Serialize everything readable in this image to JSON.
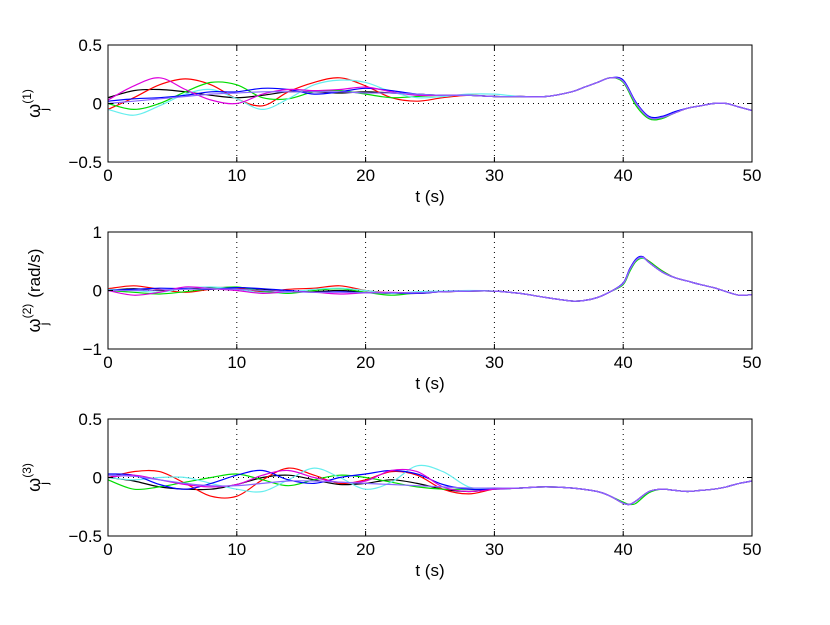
{
  "colors": {
    "black": "#000000",
    "red": "#ff0000",
    "green": "#00dd00",
    "cyan": "#66eeee",
    "blue": "#0000ff",
    "magenta": "#dd00dd",
    "purple": "#8866ff"
  },
  "chart_data": [
    {
      "type": "line",
      "xlabel": "t (s)",
      "ylabel": {
        "symbol": "ω",
        "sub": "j",
        "sup": "(1)",
        "unit": ""
      },
      "xlim": [
        0,
        50
      ],
      "ylim": [
        -0.5,
        0.5
      ],
      "xticks": [
        0,
        10,
        20,
        30,
        40,
        50
      ],
      "yticks": [
        -0.5,
        0,
        0.5
      ],
      "yticklabels": [
        "−0.5",
        "0",
        "0.5"
      ],
      "grid": true,
      "x": [
        0,
        2,
        4,
        6,
        8,
        10,
        12,
        14,
        16,
        18,
        20,
        22,
        24,
        26,
        28,
        30,
        32,
        34,
        36,
        37,
        38,
        39,
        40,
        41,
        42,
        43,
        44,
        45,
        46,
        47,
        48,
        49,
        50
      ],
      "series": [
        {
          "color": "black",
          "values": [
            0.05,
            0.11,
            0.12,
            0.1,
            0.07,
            0.05,
            0.07,
            0.1,
            0.1,
            0.09,
            0.1,
            0.09,
            0.08,
            0.07,
            0.07,
            0.06,
            0.06,
            0.06,
            0.1,
            0.14,
            0.18,
            0.22,
            0.19,
            0.0,
            -0.12,
            -0.12,
            -0.08,
            -0.04,
            -0.02,
            0.0,
            0.0,
            -0.03,
            -0.06
          ]
        },
        {
          "color": "red",
          "values": [
            -0.05,
            0.05,
            0.16,
            0.21,
            0.16,
            0.04,
            -0.02,
            0.1,
            0.18,
            0.22,
            0.15,
            0.05,
            0.02,
            0.05,
            0.07,
            0.06,
            0.06,
            0.06,
            0.1,
            0.14,
            0.18,
            0.22,
            0.19,
            0.0,
            -0.12,
            -0.12,
            -0.08,
            -0.04,
            -0.02,
            0.0,
            0.0,
            -0.03,
            -0.06
          ]
        },
        {
          "color": "green",
          "values": [
            0.0,
            -0.05,
            0.0,
            0.1,
            0.18,
            0.16,
            0.05,
            0.04,
            0.1,
            0.11,
            0.08,
            0.05,
            0.06,
            0.07,
            0.07,
            0.06,
            0.06,
            0.06,
            0.1,
            0.14,
            0.18,
            0.22,
            0.18,
            -0.02,
            -0.13,
            -0.13,
            -0.08,
            -0.04,
            -0.02,
            0.0,
            0.0,
            -0.03,
            -0.06
          ]
        },
        {
          "color": "cyan",
          "values": [
            -0.05,
            -0.1,
            -0.02,
            0.08,
            0.12,
            0.04,
            -0.05,
            0.04,
            0.16,
            0.2,
            0.18,
            0.1,
            0.05,
            0.06,
            0.08,
            0.08,
            0.06,
            0.06,
            0.1,
            0.14,
            0.18,
            0.22,
            0.19,
            0.0,
            -0.12,
            -0.12,
            -0.08,
            -0.04,
            -0.02,
            0.0,
            0.0,
            -0.03,
            -0.06
          ]
        },
        {
          "color": "blue",
          "values": [
            0.02,
            0.04,
            0.05,
            0.07,
            0.1,
            0.1,
            0.13,
            0.12,
            0.08,
            0.1,
            0.13,
            0.11,
            0.08,
            0.07,
            0.07,
            0.06,
            0.06,
            0.06,
            0.1,
            0.14,
            0.18,
            0.22,
            0.2,
            0.01,
            -0.11,
            -0.11,
            -0.07,
            -0.04,
            -0.02,
            0.0,
            0.0,
            -0.03,
            -0.06
          ]
        },
        {
          "color": "magenta",
          "values": [
            0.03,
            0.15,
            0.22,
            0.12,
            0.03,
            0.0,
            0.08,
            0.12,
            0.11,
            0.12,
            0.14,
            0.1,
            0.07,
            0.07,
            0.07,
            0.06,
            0.06,
            0.06,
            0.1,
            0.14,
            0.18,
            0.22,
            0.19,
            0.0,
            -0.12,
            -0.12,
            -0.08,
            -0.04,
            -0.02,
            0.0,
            0.0,
            -0.03,
            -0.06
          ]
        },
        {
          "color": "purple",
          "values": [
            0.0,
            0.02,
            0.04,
            0.06,
            0.08,
            0.09,
            0.1,
            0.1,
            0.1,
            0.1,
            0.09,
            0.09,
            0.08,
            0.07,
            0.07,
            0.06,
            0.06,
            0.06,
            0.1,
            0.14,
            0.18,
            0.22,
            0.19,
            0.0,
            -0.12,
            -0.12,
            -0.08,
            -0.04,
            -0.02,
            0.0,
            0.0,
            -0.03,
            -0.06
          ]
        }
      ]
    },
    {
      "type": "line",
      "xlabel": "t (s)",
      "ylabel": {
        "symbol": "ω",
        "sub": "j",
        "sup": "(2)",
        "unit": "(rad/s)"
      },
      "xlim": [
        0,
        50
      ],
      "ylim": [
        -1,
        1
      ],
      "xticks": [
        0,
        10,
        20,
        30,
        40,
        50
      ],
      "yticks": [
        -1,
        0,
        1
      ],
      "yticklabels": [
        "−1",
        "0",
        "1"
      ],
      "grid": true,
      "x": [
        0,
        2,
        4,
        6,
        8,
        10,
        12,
        14,
        16,
        18,
        20,
        22,
        24,
        26,
        28,
        30,
        32,
        34,
        36,
        37,
        38,
        39,
        40,
        40.5,
        41,
        41.5,
        42,
        43,
        44,
        45,
        46,
        47,
        48,
        49,
        50
      ],
      "series": [
        {
          "color": "black",
          "values": [
            0.0,
            0.03,
            0.0,
            0.03,
            0.05,
            0.05,
            0.02,
            -0.02,
            -0.02,
            0.0,
            -0.03,
            -0.05,
            -0.05,
            -0.02,
            -0.01,
            -0.01,
            -0.05,
            -0.12,
            -0.18,
            -0.17,
            -0.12,
            -0.02,
            0.12,
            0.35,
            0.52,
            0.57,
            0.48,
            0.32,
            0.22,
            0.16,
            0.1,
            0.05,
            -0.02,
            -0.08,
            -0.07
          ]
        },
        {
          "color": "red",
          "values": [
            0.03,
            0.08,
            0.02,
            -0.03,
            0.02,
            0.04,
            -0.02,
            0.02,
            0.04,
            0.08,
            0.0,
            -0.04,
            -0.03,
            -0.02,
            -0.01,
            -0.01,
            -0.05,
            -0.12,
            -0.18,
            -0.17,
            -0.12,
            -0.02,
            0.12,
            0.35,
            0.52,
            0.56,
            0.5,
            0.34,
            0.22,
            0.16,
            0.1,
            0.05,
            -0.02,
            -0.08,
            -0.07
          ]
        },
        {
          "color": "green",
          "values": [
            0.0,
            -0.03,
            -0.06,
            -0.02,
            0.03,
            0.06,
            -0.01,
            -0.05,
            0.0,
            0.03,
            -0.03,
            -0.08,
            -0.04,
            -0.02,
            -0.01,
            -0.01,
            -0.05,
            -0.12,
            -0.18,
            -0.17,
            -0.12,
            -0.02,
            0.1,
            0.32,
            0.5,
            0.55,
            0.5,
            0.34,
            0.22,
            0.16,
            0.1,
            0.05,
            -0.02,
            -0.08,
            -0.07
          ]
        },
        {
          "color": "cyan",
          "values": [
            0.02,
            0.0,
            -0.03,
            0.04,
            0.06,
            0.02,
            -0.04,
            -0.03,
            0.02,
            0.04,
            0.0,
            -0.05,
            -0.02,
            -0.01,
            0.0,
            -0.01,
            -0.05,
            -0.12,
            -0.18,
            -0.17,
            -0.12,
            -0.02,
            0.12,
            0.35,
            0.52,
            0.56,
            0.48,
            0.32,
            0.22,
            0.16,
            0.1,
            0.05,
            -0.02,
            -0.08,
            -0.07
          ]
        },
        {
          "color": "blue",
          "values": [
            0.0,
            0.02,
            0.04,
            0.03,
            0.02,
            0.05,
            0.03,
            0.0,
            -0.03,
            -0.02,
            -0.04,
            -0.04,
            -0.05,
            -0.02,
            -0.01,
            -0.01,
            -0.05,
            -0.12,
            -0.18,
            -0.17,
            -0.12,
            -0.02,
            0.13,
            0.37,
            0.54,
            0.58,
            0.48,
            0.32,
            0.22,
            0.16,
            0.1,
            0.05,
            -0.02,
            -0.08,
            -0.07
          ]
        },
        {
          "color": "magenta",
          "values": [
            0.0,
            -0.08,
            -0.03,
            0.06,
            0.03,
            0.0,
            -0.05,
            -0.02,
            -0.03,
            -0.06,
            -0.04,
            -0.03,
            -0.04,
            -0.02,
            -0.01,
            -0.01,
            -0.05,
            -0.12,
            -0.18,
            -0.17,
            -0.12,
            -0.02,
            0.12,
            0.35,
            0.52,
            0.57,
            0.48,
            0.32,
            0.22,
            0.16,
            0.1,
            0.05,
            -0.02,
            -0.08,
            -0.07
          ]
        },
        {
          "color": "purple",
          "values": [
            0.0,
            0.0,
            0.01,
            0.02,
            0.03,
            0.02,
            0.0,
            -0.02,
            -0.03,
            -0.03,
            -0.04,
            -0.04,
            -0.04,
            -0.02,
            -0.01,
            -0.01,
            -0.05,
            -0.12,
            -0.18,
            -0.17,
            -0.12,
            -0.02,
            0.12,
            0.35,
            0.52,
            0.57,
            0.48,
            0.32,
            0.22,
            0.16,
            0.1,
            0.05,
            -0.02,
            -0.08,
            -0.07
          ]
        }
      ]
    },
    {
      "type": "line",
      "xlabel": "t (s)",
      "ylabel": {
        "symbol": "ω",
        "sub": "j",
        "sup": "(3)",
        "unit": ""
      },
      "xlim": [
        0,
        50
      ],
      "ylim": [
        -0.5,
        0.5
      ],
      "xticks": [
        0,
        10,
        20,
        30,
        40,
        50
      ],
      "yticks": [
        -0.5,
        0,
        0.5
      ],
      "yticklabels": [
        "−0.5",
        "0",
        "0.5"
      ],
      "grid": true,
      "x": [
        0,
        2,
        4,
        6,
        8,
        10,
        12,
        14,
        16,
        18,
        20,
        22,
        24,
        26,
        28,
        30,
        32,
        34,
        36,
        38,
        39,
        40,
        40.5,
        41,
        42,
        43,
        44,
        45,
        46,
        47,
        48,
        49,
        50
      ],
      "series": [
        {
          "color": "black",
          "values": [
            0.0,
            -0.03,
            -0.08,
            -0.1,
            -0.1,
            -0.06,
            0.0,
            0.02,
            -0.02,
            -0.06,
            -0.05,
            -0.02,
            -0.05,
            -0.1,
            -0.12,
            -0.1,
            -0.09,
            -0.08,
            -0.09,
            -0.12,
            -0.16,
            -0.22,
            -0.23,
            -0.2,
            -0.12,
            -0.1,
            -0.11,
            -0.12,
            -0.11,
            -0.1,
            -0.08,
            -0.05,
            -0.03
          ]
        },
        {
          "color": "red",
          "values": [
            0.0,
            0.05,
            0.05,
            -0.05,
            -0.16,
            -0.16,
            -0.02,
            0.08,
            0.02,
            -0.05,
            -0.02,
            0.05,
            0.02,
            -0.1,
            -0.14,
            -0.1,
            -0.09,
            -0.08,
            -0.09,
            -0.12,
            -0.16,
            -0.22,
            -0.23,
            -0.2,
            -0.12,
            -0.1,
            -0.11,
            -0.12,
            -0.11,
            -0.1,
            -0.08,
            -0.05,
            -0.03
          ]
        },
        {
          "color": "green",
          "values": [
            -0.02,
            -0.1,
            -0.08,
            -0.04,
            0.0,
            0.03,
            -0.02,
            -0.07,
            -0.02,
            0.02,
            0.0,
            -0.04,
            -0.08,
            -0.1,
            -0.1,
            -0.1,
            -0.09,
            -0.08,
            -0.09,
            -0.12,
            -0.16,
            -0.21,
            -0.23,
            -0.22,
            -0.13,
            -0.1,
            -0.11,
            -0.12,
            -0.11,
            -0.1,
            -0.08,
            -0.05,
            -0.03
          ]
        },
        {
          "color": "cyan",
          "values": [
            0.0,
            -0.02,
            0.0,
            0.0,
            -0.05,
            -0.1,
            -0.12,
            -0.02,
            0.08,
            0.0,
            -0.1,
            -0.04,
            0.1,
            0.05,
            -0.08,
            -0.1,
            -0.09,
            -0.08,
            -0.09,
            -0.12,
            -0.16,
            -0.22,
            -0.23,
            -0.2,
            -0.12,
            -0.1,
            -0.11,
            -0.12,
            -0.11,
            -0.1,
            -0.08,
            -0.05,
            -0.03
          ]
        },
        {
          "color": "blue",
          "values": [
            0.03,
            0.02,
            -0.06,
            -0.1,
            -0.05,
            0.02,
            0.06,
            -0.02,
            -0.05,
            0.0,
            0.03,
            0.06,
            0.03,
            -0.06,
            -0.1,
            -0.1,
            -0.09,
            -0.08,
            -0.09,
            -0.12,
            -0.16,
            -0.22,
            -0.23,
            -0.2,
            -0.12,
            -0.1,
            -0.11,
            -0.12,
            -0.11,
            -0.1,
            -0.08,
            -0.05,
            -0.03
          ]
        },
        {
          "color": "magenta",
          "values": [
            0.0,
            0.02,
            -0.02,
            -0.06,
            -0.08,
            -0.06,
            0.02,
            0.06,
            0.0,
            -0.04,
            -0.03,
            0.06,
            0.05,
            -0.08,
            -0.12,
            -0.1,
            -0.09,
            -0.08,
            -0.09,
            -0.12,
            -0.16,
            -0.22,
            -0.23,
            -0.2,
            -0.12,
            -0.1,
            -0.11,
            -0.12,
            -0.11,
            -0.1,
            -0.08,
            -0.05,
            -0.03
          ]
        },
        {
          "color": "purple",
          "values": [
            0.02,
            0.01,
            -0.02,
            -0.05,
            -0.07,
            -0.07,
            -0.05,
            -0.03,
            -0.03,
            -0.04,
            -0.05,
            -0.06,
            -0.07,
            -0.08,
            -0.09,
            -0.09,
            -0.09,
            -0.08,
            -0.09,
            -0.12,
            -0.16,
            -0.22,
            -0.23,
            -0.2,
            -0.12,
            -0.1,
            -0.11,
            -0.12,
            -0.11,
            -0.1,
            -0.08,
            -0.05,
            -0.03
          ]
        }
      ]
    }
  ]
}
